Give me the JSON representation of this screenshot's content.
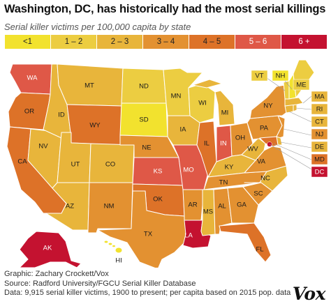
{
  "title": "Washington, DC, has historically had the most serial killings",
  "subtitle": "Serial killer victims per 100,000 capita by state",
  "legend": [
    {
      "label": "<1",
      "color": "#f2e22e"
    },
    {
      "label": "1 – 2",
      "color": "#eccd41"
    },
    {
      "label": "2 – 3",
      "color": "#e8b53b"
    },
    {
      "label": "3 – 4",
      "color": "#e39131"
    },
    {
      "label": "4 – 5",
      "color": "#dd7228"
    },
    {
      "label": "5 – 6",
      "color": "#df5847"
    },
    {
      "label": "6 +",
      "color": "#c41230"
    }
  ],
  "states": {
    "WA": {
      "bin": "5 – 6"
    },
    "OR": {
      "bin": "4 – 5"
    },
    "CA": {
      "bin": "4 – 5"
    },
    "NV": {
      "bin": "2 – 3"
    },
    "ID": {
      "bin": "2 – 3"
    },
    "MT": {
      "bin": "2 – 3"
    },
    "WY": {
      "bin": "4 – 5"
    },
    "UT": {
      "bin": "2 – 3"
    },
    "AZ": {
      "bin": "2 – 3"
    },
    "CO": {
      "bin": "2 – 3"
    },
    "NM": {
      "bin": "3 – 4"
    },
    "ND": {
      "bin": "1 – 2"
    },
    "SD": {
      "bin": "<1"
    },
    "NE": {
      "bin": "3 – 4"
    },
    "KS": {
      "bin": "5 – 6"
    },
    "OK": {
      "bin": "4 – 5"
    },
    "TX": {
      "bin": "3 – 4"
    },
    "MN": {
      "bin": "1 – 2"
    },
    "IA": {
      "bin": "2 – 3"
    },
    "MO": {
      "bin": "5 – 6"
    },
    "AR": {
      "bin": "3 – 4"
    },
    "LA": {
      "bin": "6 +"
    },
    "WI": {
      "bin": "1 – 2"
    },
    "IL": {
      "bin": "4 – 5"
    },
    "MI": {
      "bin": "2 – 3"
    },
    "IN": {
      "bin": "5 – 6"
    },
    "OH": {
      "bin": "3 – 4"
    },
    "KY": {
      "bin": "2 – 3"
    },
    "TN": {
      "bin": "3 – 4"
    },
    "MS": {
      "bin": "2 – 3"
    },
    "AL": {
      "bin": "3 – 4"
    },
    "GA": {
      "bin": "3 – 4"
    },
    "FL": {
      "bin": "4 – 5"
    },
    "SC": {
      "bin": "3 – 4"
    },
    "NC": {
      "bin": "2 – 3"
    },
    "VA": {
      "bin": "3 – 4"
    },
    "WV": {
      "bin": "2 – 3"
    },
    "PA": {
      "bin": "3 – 4"
    },
    "NY": {
      "bin": "3 – 4"
    },
    "ME": {
      "bin": "1 – 2"
    },
    "VT": {
      "bin": "1 – 2"
    },
    "NH": {
      "bin": "<1"
    },
    "MA": {
      "bin": "2 – 3"
    },
    "RI": {
      "bin": "2 – 3"
    },
    "CT": {
      "bin": "2 – 3"
    },
    "NJ": {
      "bin": "3 – 4"
    },
    "DE": {
      "bin": "2 – 3"
    },
    "MD": {
      "bin": "4 – 5"
    },
    "DC": {
      "bin": "6 +"
    },
    "AK": {
      "bin": "6 +"
    },
    "HI": {
      "bin": "<1"
    }
  },
  "credits": {
    "line1": "Graphic: Zachary Crockett/Vox",
    "line2": "Source: Radford University/FGCU Serial Killer Database",
    "line3": "Data: 9,915 serial killer victims, 1900 to present; per capita based on 2015 pop. data"
  },
  "logo": "Vox"
}
